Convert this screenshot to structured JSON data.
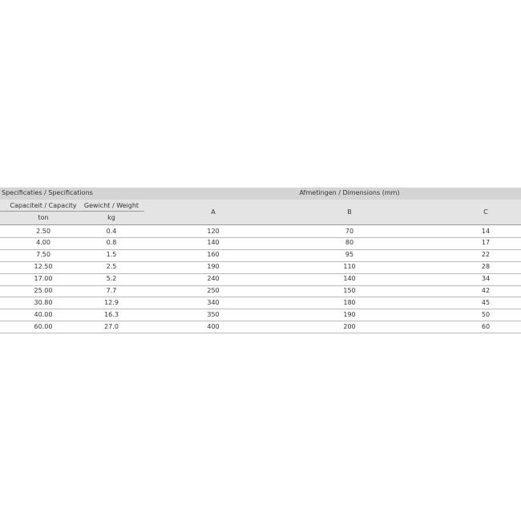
{
  "table": {
    "header": {
      "specs": "Specificaties / Specifications",
      "dims": "Afmetingen / Dimensions (mm)",
      "capacity": "Capaciteit / Capacity",
      "weight": "Gewicht / Weight",
      "units": [
        "ton",
        "kg"
      ],
      "columns": [
        "A",
        "B",
        "C"
      ]
    },
    "rows": [
      [
        "2.50",
        "0.4",
        "120",
        "70",
        "14"
      ],
      [
        "4.00",
        "0.8",
        "140",
        "80",
        "17"
      ],
      [
        "7.50",
        "1.5",
        "160",
        "95",
        "22"
      ],
      [
        "12.50",
        "2.5",
        "190",
        "110",
        "28"
      ],
      [
        "17.00",
        "5.2",
        "240",
        "140",
        "34"
      ],
      [
        "25.00",
        "7.7",
        "250",
        "150",
        "42"
      ],
      [
        "30.80",
        "12.9",
        "340",
        "180",
        "45"
      ],
      [
        "40.00",
        "16.3",
        "350",
        "190",
        "50"
      ],
      [
        "60.00",
        "27.0",
        "400",
        "200",
        "60"
      ]
    ]
  }
}
